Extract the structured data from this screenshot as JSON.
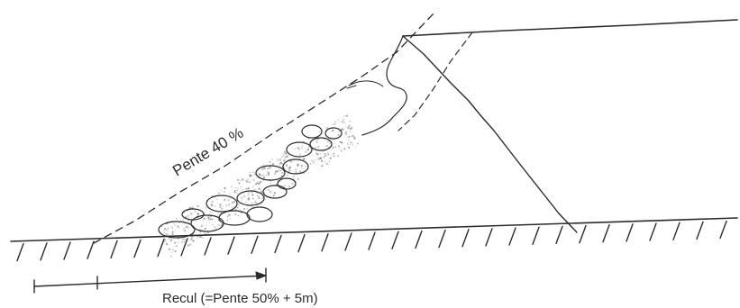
{
  "labels": {
    "slope_label": "Pente 40 %",
    "setback_label": "Recul (=Pente 50% + 5m)"
  },
  "colors": {
    "ink": "#2b2b2b",
    "paper": "#ffffff",
    "speckle": "#8a8a8a"
  }
}
